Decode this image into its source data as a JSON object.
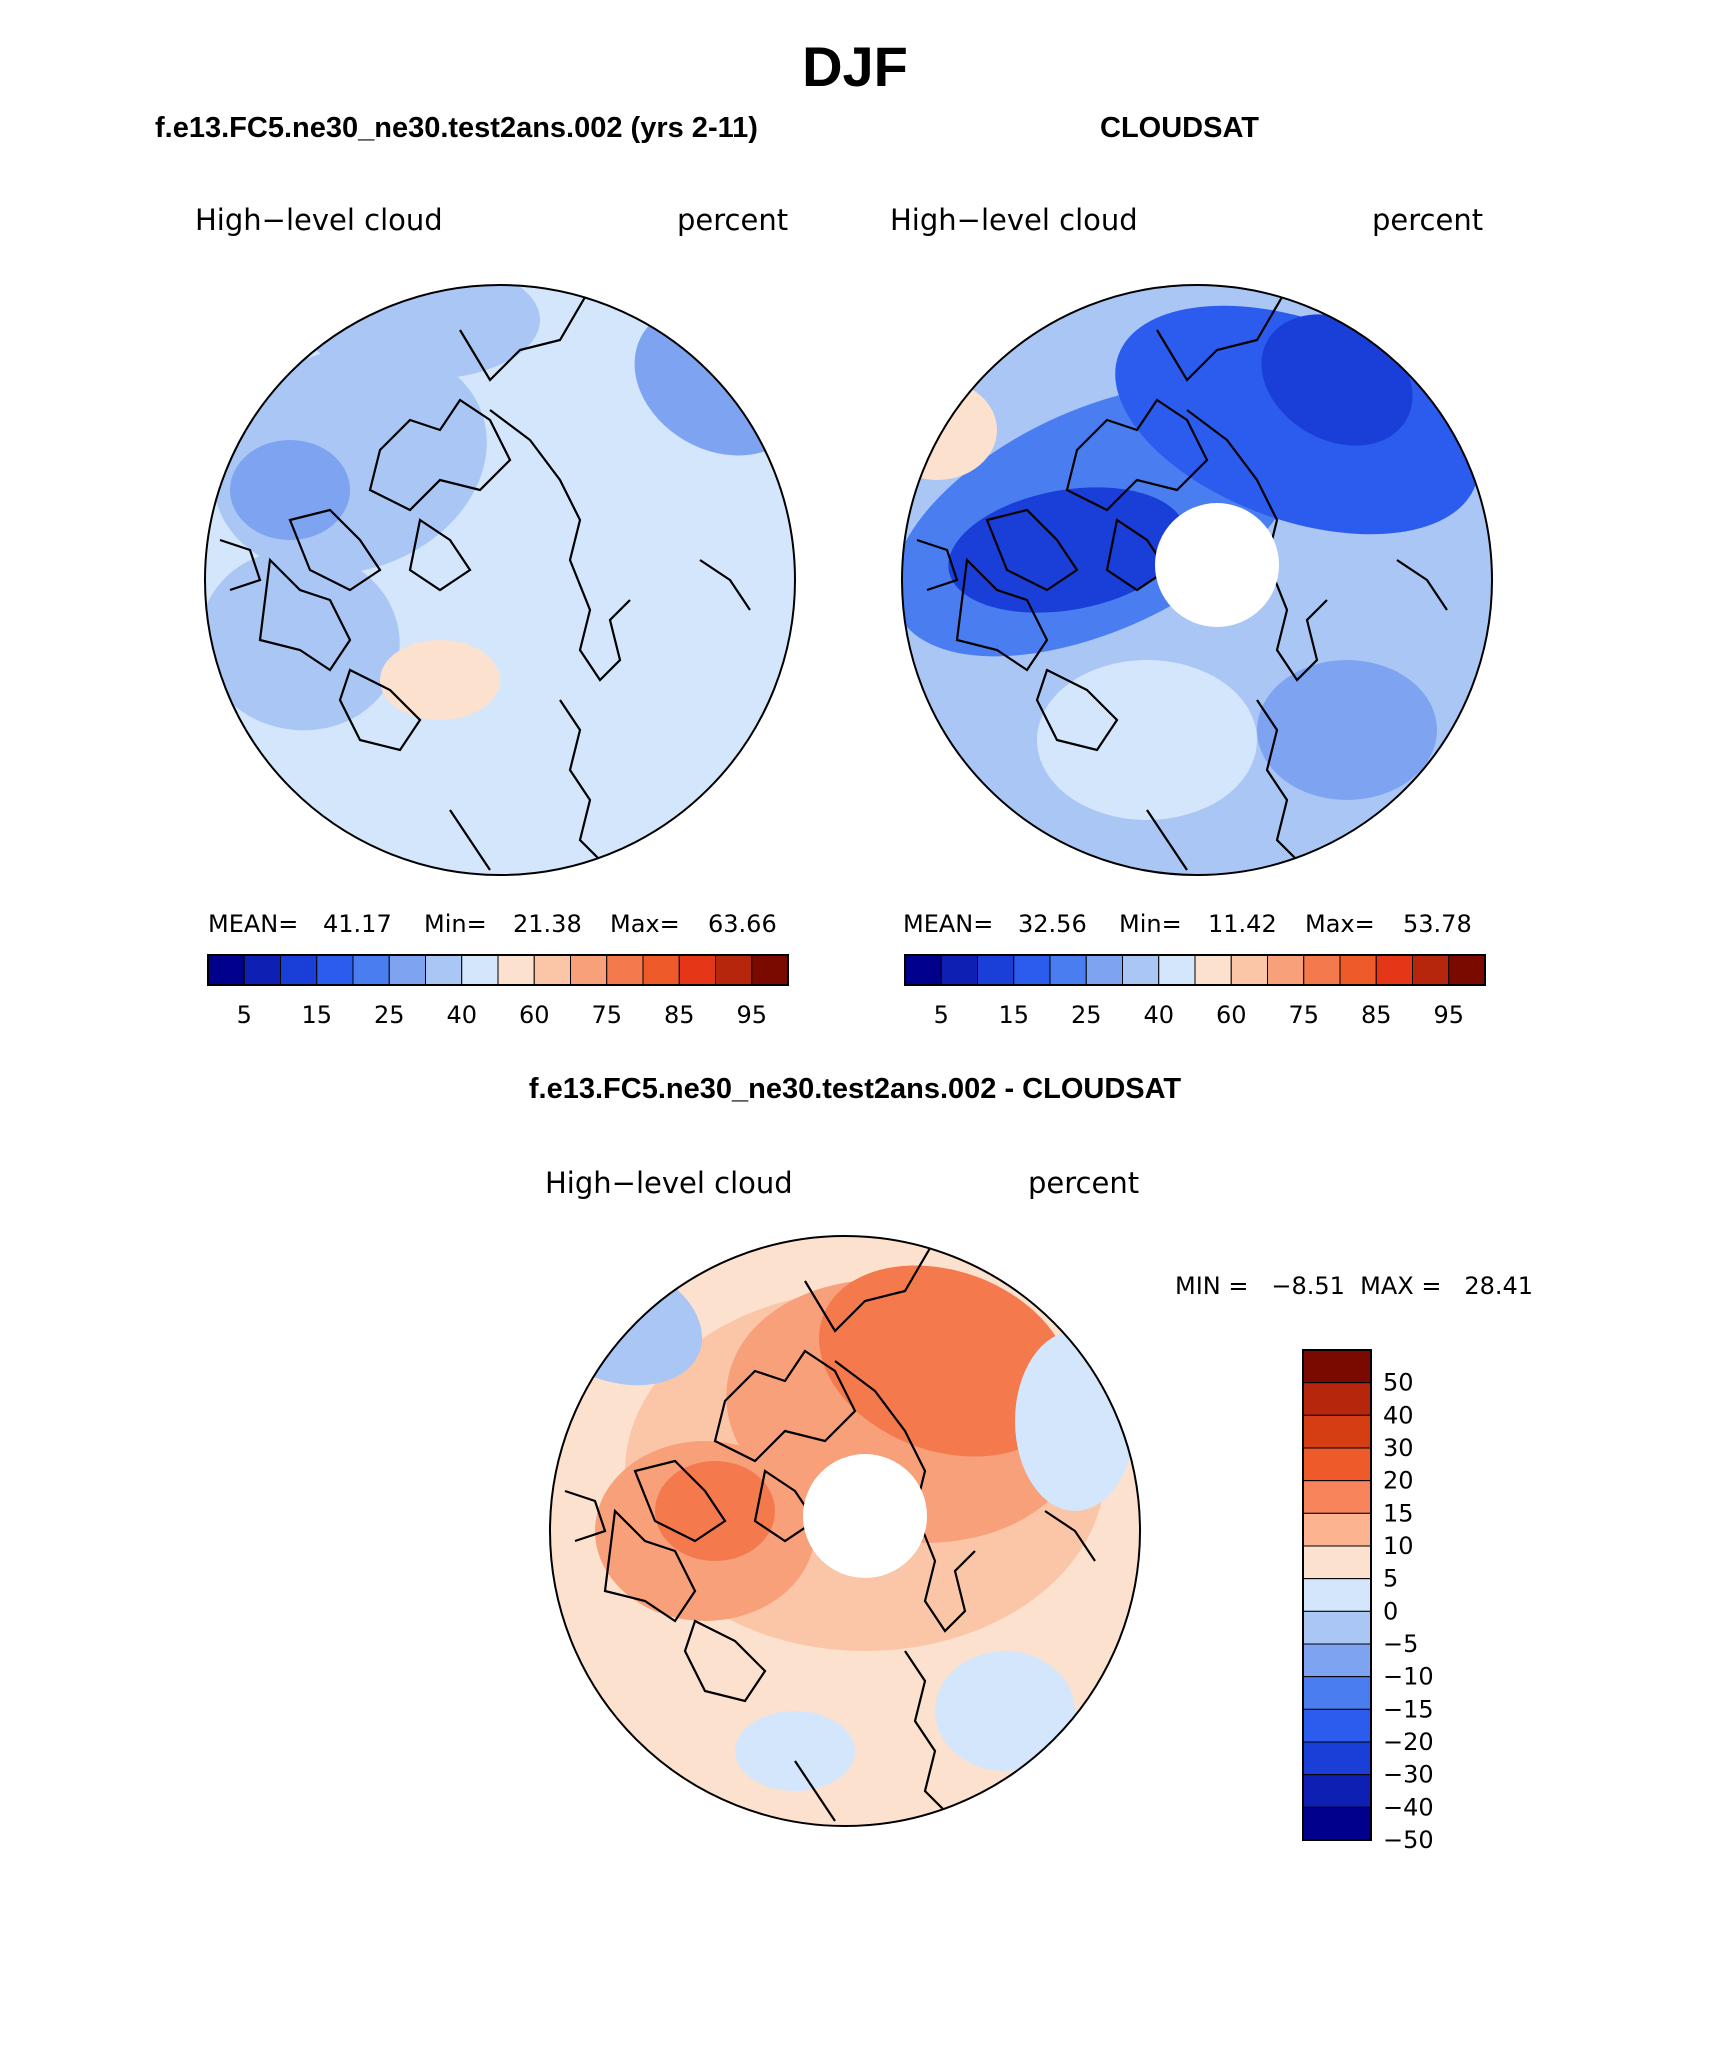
{
  "figure": {
    "season_title": "DJF",
    "panels": [
      {
        "id": "model",
        "case_title": "f.e13.FC5.ne30_ne30.test2ans.002 (yrs 2-11)",
        "variable": "High−level cloud",
        "units": "percent",
        "stats": {
          "mean_label": "MEAN=",
          "mean": "41.17",
          "min_label": "Min=",
          "min": "21.38",
          "max_label": "Max=",
          "max": "63.66"
        },
        "polar_hole": false,
        "field_note": "mostly 40-60 percent, 25-40 over N. America/Pacific sector, small 60-75 patches over Hudson Bay"
      },
      {
        "id": "obs",
        "case_title": "CLOUDSAT",
        "variable": "High−level cloud",
        "units": "percent",
        "stats": {
          "mean_label": "MEAN=",
          "mean": "32.56",
          "min_label": "Min=",
          "min": "11.42",
          "max_label": "Max=",
          "max": "53.78"
        },
        "polar_hole": true,
        "field_note": "low values 15-25 over Canadian Arctic and Siberia, 40-60 over Atlantic/Europe"
      }
    ],
    "abs_colorbar": {
      "colors": [
        "#00008c",
        "#0e1fb4",
        "#1a3fd8",
        "#2b5cee",
        "#4a7ef0",
        "#7ea3f0",
        "#aac6f5",
        "#d3e6fb",
        "#fde1cf",
        "#fbc5a7",
        "#f7a07a",
        "#f47a4e",
        "#ef5a2a",
        "#e53718",
        "#b5260d",
        "#7a0a00"
      ],
      "tick_labels": [
        "5",
        "15",
        "25",
        "40",
        "60",
        "75",
        "85",
        "95"
      ]
    },
    "diff_panel": {
      "case_title": "f.e13.FC5.ne30_ne30.test2ans.002 - CLOUDSAT",
      "variable": "High−level cloud",
      "units": "percent",
      "minmax_text": "MIN =   −8.51  MAX =   28.41",
      "polar_hole": true,
      "field_note": "mostly positive 5-30 percent, strongest 20-30 over Siberia and Canadian Arctic, small negative patches over Pacific and N. Atlantic"
    },
    "diff_colorbar": {
      "colors_top_to_bottom": [
        "#7a0a00",
        "#b5260d",
        "#d53e12",
        "#ef5a2a",
        "#f7845a",
        "#fbb48f",
        "#fde1cf",
        "#d3e6fb",
        "#aac6f5",
        "#7ea3f0",
        "#4a7ef0",
        "#2b5cee",
        "#1a3fd8",
        "#0e1fb4",
        "#00008c"
      ],
      "tick_labels_top_to_bottom": [
        "50",
        "40",
        "30",
        "20",
        "15",
        "10",
        "5",
        "0",
        "−5",
        "−10",
        "−15",
        "−20",
        "−30",
        "−40",
        "−50"
      ]
    }
  }
}
